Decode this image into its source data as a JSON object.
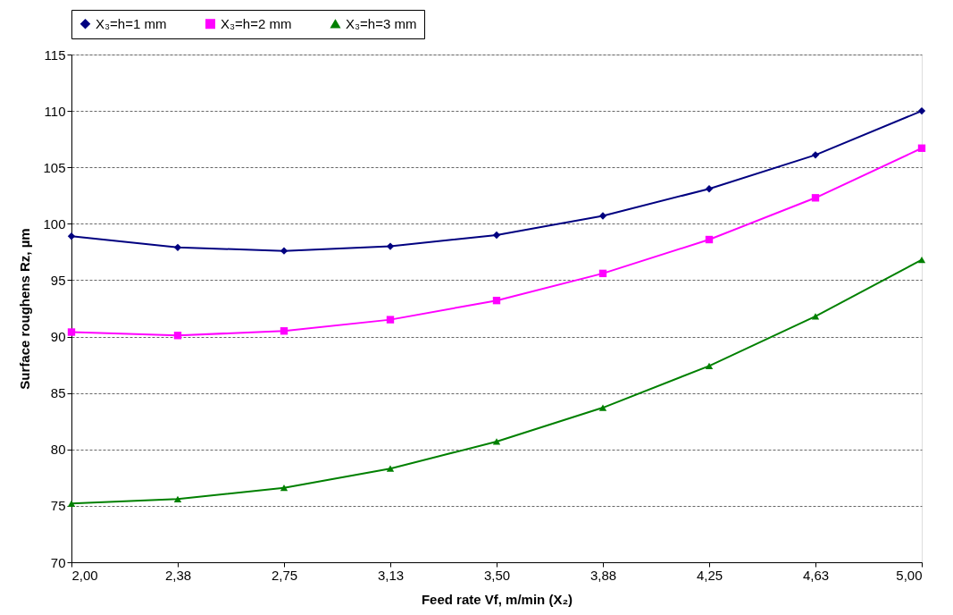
{
  "chart_data": {
    "type": "line",
    "xlabel": "Feed rate Vf, m/min (X₂)",
    "ylabel": "Surface roughens Rz, µm",
    "categories": [
      "2,00",
      "2,38",
      "2,75",
      "3,13",
      "3,50",
      "3,88",
      "4,25",
      "4,63",
      "5,00"
    ],
    "series": [
      {
        "name": "X₃=h=1 mm",
        "color": "#000080",
        "marker": "diamond",
        "values": [
          98.9,
          97.9,
          97.6,
          98.0,
          99.0,
          100.7,
          103.1,
          106.1,
          110.0
        ]
      },
      {
        "name": "X₃=h=2 mm",
        "color": "#ff00ff",
        "marker": "square",
        "values": [
          90.4,
          90.1,
          90.5,
          91.5,
          93.2,
          95.6,
          98.6,
          102.3,
          106.7
        ]
      },
      {
        "name": "X₃=h=3 mm",
        "color": "#008000",
        "marker": "triangle",
        "values": [
          75.2,
          75.6,
          76.6,
          78.3,
          80.7,
          83.7,
          87.4,
          91.8,
          96.8
        ]
      }
    ],
    "ylim": [
      70,
      115
    ],
    "yticks": [
      70,
      75,
      80,
      85,
      90,
      95,
      100,
      105,
      110,
      115
    ],
    "grid": "y",
    "legend": "top",
    "line_style": "solid"
  }
}
